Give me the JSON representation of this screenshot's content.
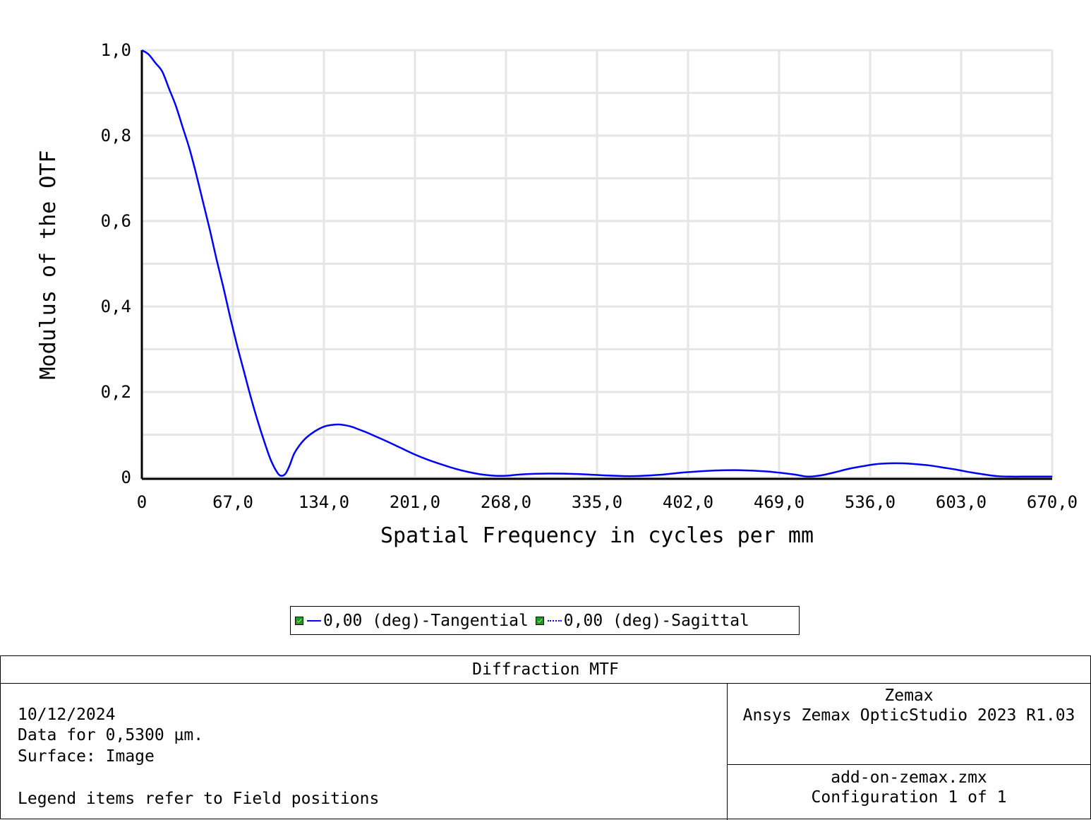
{
  "chart_data": {
    "type": "line",
    "xlabel": "Spatial Frequency in cycles per mm",
    "ylabel": "Modulus of the OTF",
    "xlim": [
      0,
      670
    ],
    "ylim": [
      0,
      1
    ],
    "x_ticks": [
      "0",
      "67,0",
      "134,0",
      "201,0",
      "268,0",
      "335,0",
      "402,0",
      "469,0",
      "536,0",
      "603,0",
      "670,0"
    ],
    "y_ticks": [
      "0",
      "0,2",
      "0,4",
      "0,6",
      "0,8",
      "1,0"
    ],
    "grid": true,
    "series": [
      {
        "name": "0,00 (deg)-Tangential",
        "color": "#0000ff",
        "style": "solid",
        "x": [
          0,
          5,
          10,
          15,
          20,
          25,
          30,
          35,
          40,
          45,
          50,
          55,
          60,
          65,
          70,
          75,
          80,
          85,
          90,
          95,
          100,
          103,
          106,
          109,
          112,
          116,
          120,
          125,
          130,
          135,
          140,
          145,
          150,
          155,
          160,
          165,
          170,
          180,
          190,
          200,
          210,
          220,
          230,
          240,
          250,
          260,
          268,
          275,
          285,
          300,
          320,
          340,
          360,
          380,
          400,
          420,
          440,
          460,
          480,
          490,
          500,
          510,
          520,
          530,
          540,
          550,
          560,
          570,
          580,
          590,
          600,
          610,
          620,
          630,
          640,
          650,
          660,
          670
        ],
        "y": [
          1.0,
          0.99,
          0.97,
          0.95,
          0.91,
          0.87,
          0.82,
          0.77,
          0.71,
          0.645,
          0.58,
          0.51,
          0.445,
          0.375,
          0.31,
          0.25,
          0.19,
          0.135,
          0.085,
          0.04,
          0.01,
          0.004,
          0.01,
          0.03,
          0.055,
          0.075,
          0.09,
          0.103,
          0.113,
          0.12,
          0.123,
          0.124,
          0.122,
          0.118,
          0.112,
          0.106,
          0.099,
          0.085,
          0.07,
          0.055,
          0.042,
          0.031,
          0.021,
          0.013,
          0.007,
          0.004,
          0.004,
          0.006,
          0.008,
          0.009,
          0.008,
          0.005,
          0.003,
          0.006,
          0.012,
          0.016,
          0.017,
          0.014,
          0.007,
          0.002,
          0.005,
          0.012,
          0.02,
          0.026,
          0.031,
          0.033,
          0.033,
          0.031,
          0.028,
          0.023,
          0.018,
          0.012,
          0.007,
          0.003,
          0.002,
          0.002,
          0.002,
          0.002
        ]
      }
    ]
  },
  "legend": {
    "entries": [
      {
        "label": "0,00 (deg)-Tangential",
        "line_style": "solid",
        "color": "#0000ff"
      },
      {
        "label": "0,00 (deg)-Sagittal",
        "line_style": "dotted",
        "color": "#0000ff"
      }
    ]
  },
  "info": {
    "title": "Diffraction MTF",
    "date": "10/12/2024",
    "wavelength_line": "Data for 0,5300 µm.",
    "surface_line": "Surface: Image",
    "legend_note": "Legend items refer to Field positions",
    "company": "Zemax",
    "product": "Ansys Zemax OpticStudio 2023 R1.03",
    "file": "add-on-zemax.zmx",
    "configuration": "Configuration 1 of 1"
  }
}
